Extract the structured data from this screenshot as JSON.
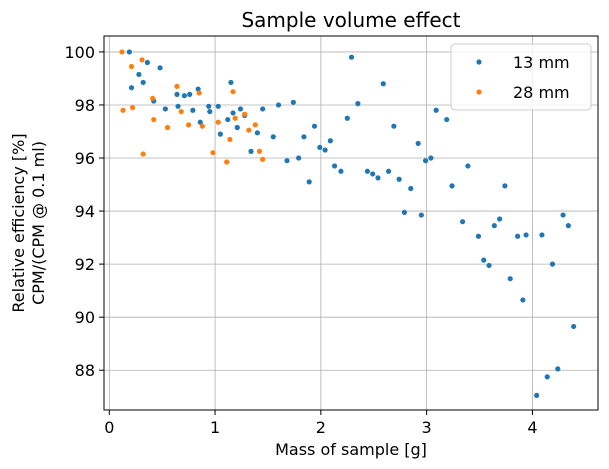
{
  "chart_data": {
    "type": "scatter",
    "title": "Sample volume effect",
    "xlabel": "Mass of sample [g]",
    "ylabel": [
      "Relative efficiency [%]",
      "CPM/(CPM @ 0.1 ml)"
    ],
    "xlim": [
      -0.05,
      4.62
    ],
    "ylim": [
      86.5,
      100.6
    ],
    "xticks": [
      0,
      1,
      2,
      3,
      4
    ],
    "yticks": [
      88,
      90,
      92,
      94,
      96,
      98,
      100
    ],
    "grid": true,
    "legend_position": "top-right",
    "series": [
      {
        "name": "13 mm",
        "color": "#1f77b4",
        "points": [
          [
            0.19,
            100.0
          ],
          [
            0.21,
            98.65
          ],
          [
            0.28,
            99.15
          ],
          [
            0.32,
            98.85
          ],
          [
            0.36,
            99.6
          ],
          [
            0.42,
            98.15
          ],
          [
            0.48,
            99.4
          ],
          [
            0.53,
            97.85
          ],
          [
            0.64,
            98.4
          ],
          [
            0.65,
            97.95
          ],
          [
            0.71,
            98.35
          ],
          [
            0.76,
            98.4
          ],
          [
            0.79,
            97.8
          ],
          [
            0.84,
            98.6
          ],
          [
            0.86,
            97.35
          ],
          [
            0.94,
            97.95
          ],
          [
            0.95,
            97.75
          ],
          [
            1.03,
            97.95
          ],
          [
            1.05,
            96.9
          ],
          [
            1.12,
            97.45
          ],
          [
            1.15,
            98.85
          ],
          [
            1.17,
            97.7
          ],
          [
            1.21,
            97.15
          ],
          [
            1.24,
            97.85
          ],
          [
            1.28,
            97.6
          ],
          [
            1.34,
            96.25
          ],
          [
            1.4,
            96.95
          ],
          [
            1.45,
            97.85
          ],
          [
            1.55,
            96.8
          ],
          [
            1.6,
            98.0
          ],
          [
            1.68,
            95.9
          ],
          [
            1.74,
            98.1
          ],
          [
            1.79,
            96.0
          ],
          [
            1.84,
            96.8
          ],
          [
            1.89,
            95.1
          ],
          [
            1.94,
            97.2
          ],
          [
            1.99,
            96.4
          ],
          [
            2.04,
            96.3
          ],
          [
            2.09,
            96.65
          ],
          [
            2.13,
            95.7
          ],
          [
            2.19,
            95.5
          ],
          [
            2.25,
            97.5
          ],
          [
            2.29,
            99.8
          ],
          [
            2.35,
            98.05
          ],
          [
            2.44,
            95.5
          ],
          [
            2.49,
            95.4
          ],
          [
            2.54,
            95.25
          ],
          [
            2.59,
            98.8
          ],
          [
            2.64,
            95.5
          ],
          [
            2.69,
            97.2
          ],
          [
            2.74,
            95.2
          ],
          [
            2.79,
            93.95
          ],
          [
            2.85,
            94.85
          ],
          [
            2.92,
            96.55
          ],
          [
            2.95,
            93.85
          ],
          [
            2.99,
            95.9
          ],
          [
            3.04,
            96.0
          ],
          [
            3.09,
            97.8
          ],
          [
            3.19,
            97.45
          ],
          [
            3.24,
            94.95
          ],
          [
            3.34,
            93.6
          ],
          [
            3.39,
            95.7
          ],
          [
            3.49,
            93.05
          ],
          [
            3.54,
            92.15
          ],
          [
            3.59,
            91.95
          ],
          [
            3.64,
            93.45
          ],
          [
            3.69,
            93.7
          ],
          [
            3.74,
            94.95
          ],
          [
            3.79,
            91.45
          ],
          [
            3.86,
            93.05
          ],
          [
            3.91,
            90.65
          ],
          [
            3.94,
            93.1
          ],
          [
            4.04,
            87.05
          ],
          [
            4.09,
            93.1
          ],
          [
            4.14,
            87.75
          ],
          [
            4.19,
            92.0
          ],
          [
            4.24,
            88.05
          ],
          [
            4.29,
            93.85
          ],
          [
            4.34,
            93.45
          ],
          [
            4.39,
            89.65
          ]
        ]
      },
      {
        "name": "28 mm",
        "color": "#ff7f0e",
        "points": [
          [
            0.12,
            100.0
          ],
          [
            0.13,
            97.8
          ],
          [
            0.21,
            99.45
          ],
          [
            0.22,
            97.9
          ],
          [
            0.31,
            99.7
          ],
          [
            0.32,
            96.15
          ],
          [
            0.41,
            98.25
          ],
          [
            0.42,
            97.45
          ],
          [
            0.55,
            97.15
          ],
          [
            0.64,
            98.7
          ],
          [
            0.68,
            97.75
          ],
          [
            0.75,
            97.25
          ],
          [
            0.85,
            98.45
          ],
          [
            0.88,
            97.2
          ],
          [
            0.98,
            96.2
          ],
          [
            1.03,
            97.35
          ],
          [
            1.11,
            95.85
          ],
          [
            1.14,
            96.7
          ],
          [
            1.17,
            98.5
          ],
          [
            1.19,
            97.5
          ],
          [
            1.28,
            97.65
          ],
          [
            1.32,
            97.05
          ],
          [
            1.38,
            97.25
          ],
          [
            1.42,
            96.25
          ],
          [
            1.45,
            95.95
          ]
        ]
      }
    ]
  }
}
